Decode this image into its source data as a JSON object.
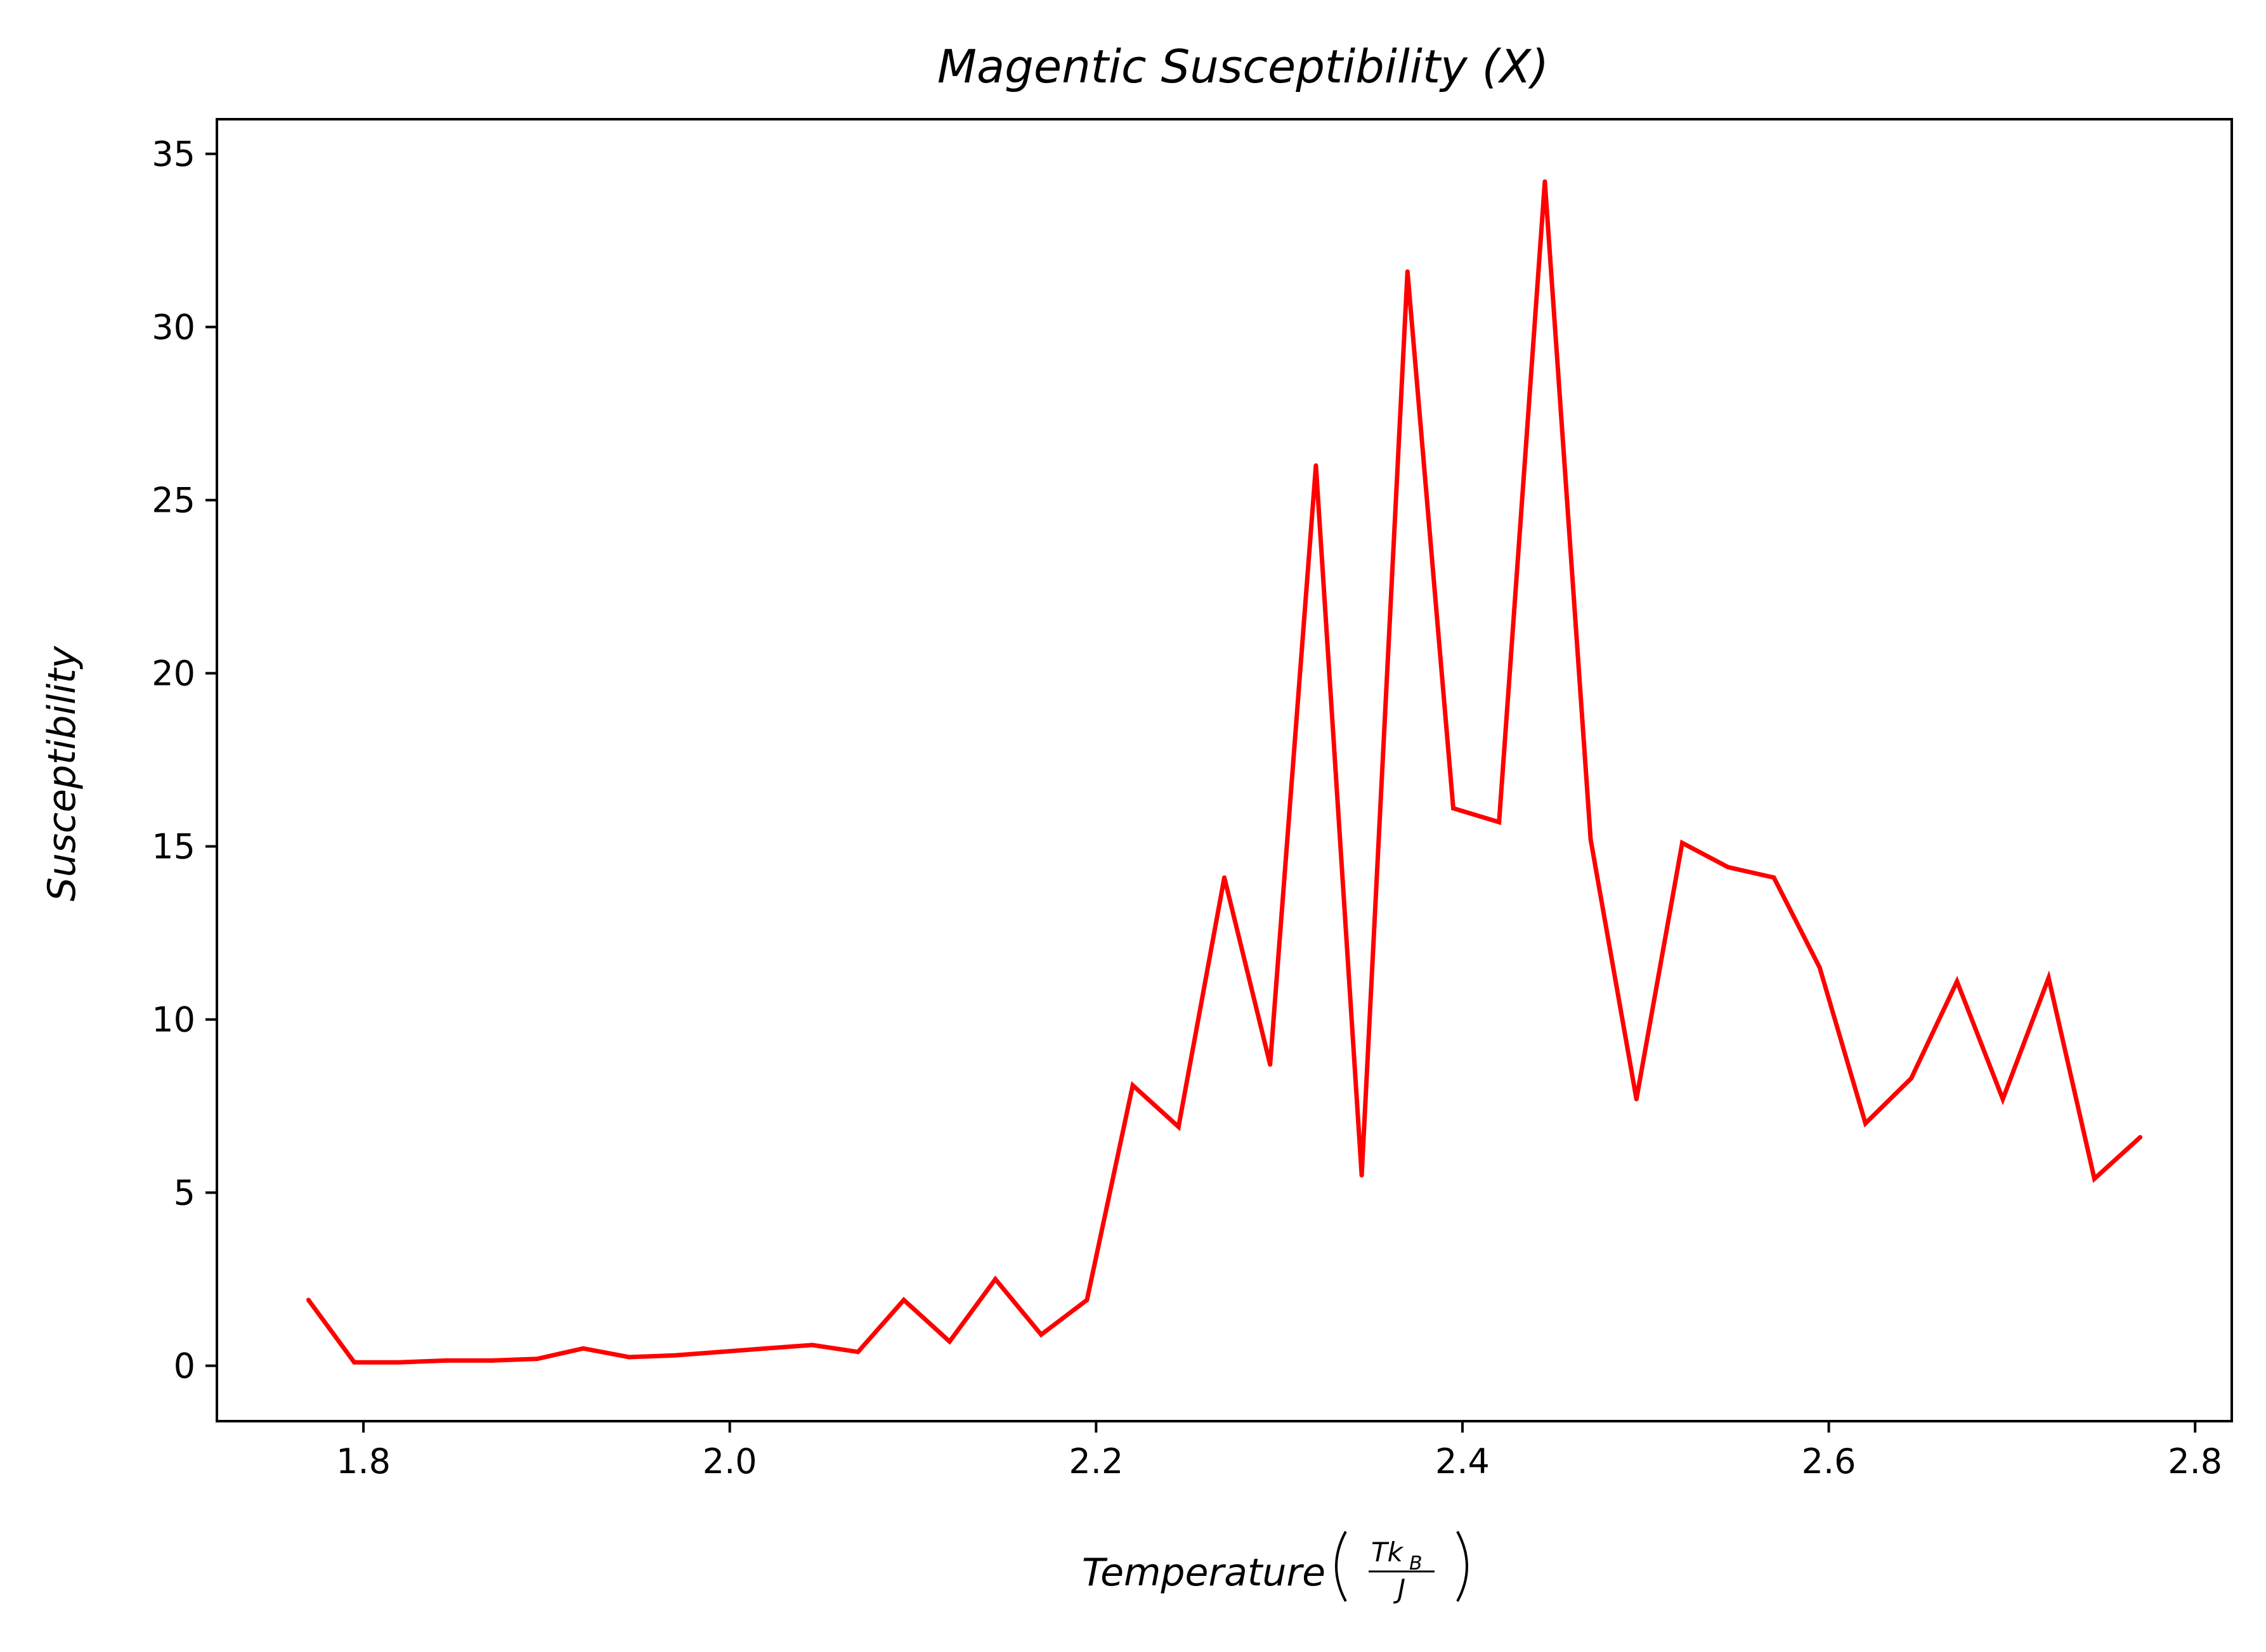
{
  "chart_data": {
    "type": "line",
    "title": "Magentic Susceptibility (X)",
    "xlabel": "Temperature",
    "xlabel_fraction": {
      "numerator": "Tk",
      "numerator_subscript": "B",
      "denominator": "J"
    },
    "ylabel": "Susceptibility",
    "xlim": [
      1.72,
      2.82
    ],
    "ylim": [
      -1.6,
      36.0
    ],
    "xticks": [
      1.8,
      2.0,
      2.2,
      2.4,
      2.6,
      2.8
    ],
    "xtick_labels": [
      "1.8",
      "2.0",
      "2.2",
      "2.4",
      "2.6",
      "2.8"
    ],
    "yticks": [
      0,
      5,
      10,
      15,
      20,
      25,
      30,
      35
    ],
    "ytick_labels": [
      "0",
      "5",
      "10",
      "15",
      "20",
      "25",
      "30",
      "35"
    ],
    "grid": false,
    "series": [
      {
        "color": "#ff0000",
        "x": [
          1.77,
          1.795,
          1.82,
          1.845,
          1.87,
          1.895,
          1.92,
          1.945,
          1.97,
          1.995,
          2.02,
          2.045,
          2.07,
          2.095,
          2.12,
          2.145,
          2.17,
          2.195,
          2.22,
          2.245,
          2.27,
          2.295,
          2.32,
          2.345,
          2.37,
          2.395,
          2.42,
          2.445,
          2.47,
          2.495,
          2.52,
          2.545,
          2.57,
          2.595,
          2.62,
          2.645,
          2.67,
          2.695,
          2.72,
          2.745,
          2.77
        ],
        "y": [
          1.9,
          0.1,
          0.1,
          0.15,
          0.15,
          0.2,
          0.5,
          0.25,
          0.3,
          0.4,
          0.5,
          0.6,
          0.4,
          1.9,
          0.7,
          2.5,
          0.9,
          1.9,
          8.1,
          6.9,
          14.1,
          8.7,
          26.0,
          5.5,
          31.6,
          16.1,
          15.7,
          34.2,
          15.2,
          7.7,
          15.1,
          14.4,
          14.1,
          11.5,
          7.0,
          8.3,
          11.1,
          7.7,
          11.2,
          5.4,
          6.6
        ]
      }
    ]
  }
}
